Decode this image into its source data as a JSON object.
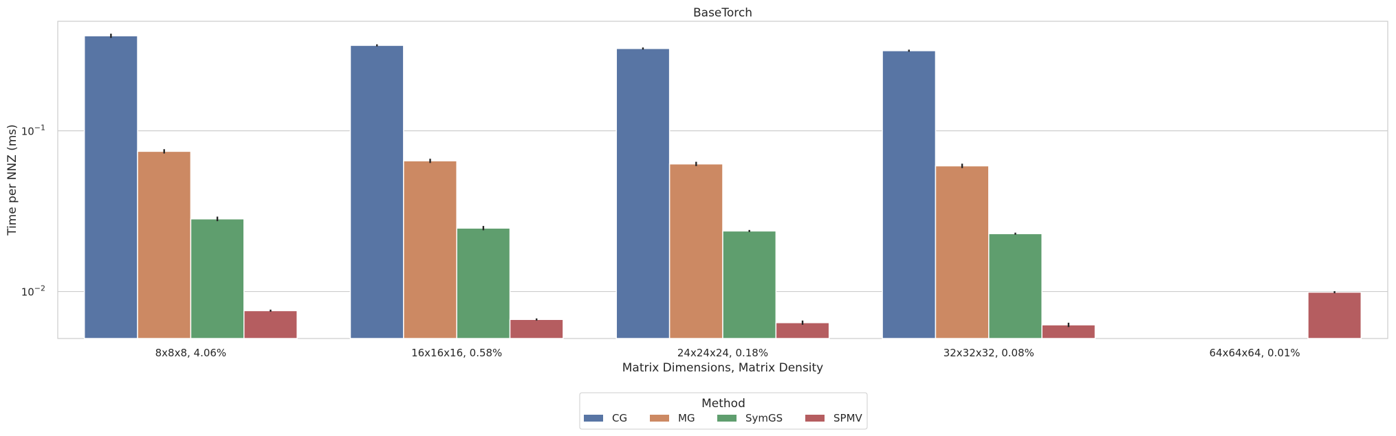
{
  "chart_data": {
    "type": "bar",
    "title": "BaseTorch",
    "xlabel": "Matrix Dimensions, Matrix Density",
    "ylabel": "Time per NNZ (ms)",
    "yscale": "log",
    "ylim": [
      0.0051,
      0.48
    ],
    "yticks": [
      {
        "value": 0.01,
        "base": "10",
        "exp": "−2"
      },
      {
        "value": 0.1,
        "base": "10",
        "exp": "−1"
      }
    ],
    "grid": true,
    "categories": [
      "8x8x8, 4.06%",
      "16x16x16, 0.58%",
      "24x24x24, 0.18%",
      "32x32x32, 0.08%",
      "64x64x64, 0.01%"
    ],
    "series": [
      {
        "name": "CG",
        "color": "#5875a4",
        "values": [
          0.39,
          0.34,
          0.325,
          0.315,
          null
        ],
        "errors": [
          0.006,
          0.0,
          0.0,
          0.0,
          null
        ]
      },
      {
        "name": "MG",
        "color": "#cc8963",
        "values": [
          0.0745,
          0.065,
          0.0622,
          0.0605,
          null
        ],
        "errors": [
          0.0012,
          0.001,
          0.001,
          0.001,
          null
        ]
      },
      {
        "name": "SymGS",
        "color": "#5f9e6e",
        "values": [
          0.0283,
          0.0248,
          0.0238,
          0.0229,
          null
        ],
        "errors": [
          0.0005,
          0.0004,
          0.0,
          0.0,
          null
        ]
      },
      {
        "name": "SPMV",
        "color": "#b55d60",
        "values": [
          0.0076,
          0.0067,
          0.0064,
          0.0062,
          0.0099
        ],
        "errors": [
          0.0,
          0.0,
          0.0001,
          0.0001,
          0.0
        ]
      }
    ],
    "legend": {
      "title": "Method",
      "placement": "bottom-center"
    }
  }
}
